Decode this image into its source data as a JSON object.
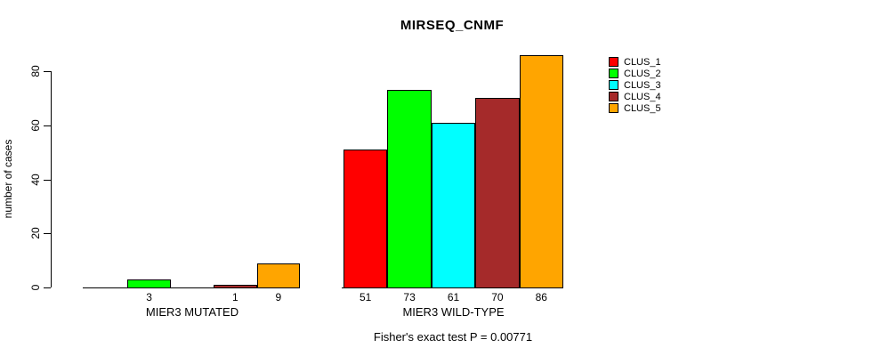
{
  "chart_data": {
    "type": "bar",
    "title": "MIRSEQ_CNMF",
    "ylabel": "number of cases",
    "xlabel": "",
    "ylim": [
      0,
      80
    ],
    "yticks": [
      0,
      20,
      40,
      60,
      80
    ],
    "grid": false,
    "legend_position": "right",
    "categories": [
      "MIER3 MUTATED",
      "MIER3 WILD-TYPE"
    ],
    "series": [
      {
        "name": "CLUS_1",
        "color": "#ff0000",
        "values": [
          0,
          51
        ]
      },
      {
        "name": "CLUS_2",
        "color": "#00ff00",
        "values": [
          3,
          73
        ]
      },
      {
        "name": "CLUS_3",
        "color": "#00ffff",
        "values": [
          0,
          61
        ]
      },
      {
        "name": "CLUS_4",
        "color": "#a52a2a",
        "values": [
          1,
          70
        ]
      },
      {
        "name": "CLUS_5",
        "color": "#ffa500",
        "values": [
          9,
          86
        ]
      }
    ],
    "bar_value_labels_shown_for_nonzero_only": true,
    "footnote": "Fisher's exact test P = 0.00771",
    "colors": {
      "bar_border": "#000000",
      "axis": "#000000",
      "text": "#000000",
      "background": "#ffffff"
    }
  }
}
